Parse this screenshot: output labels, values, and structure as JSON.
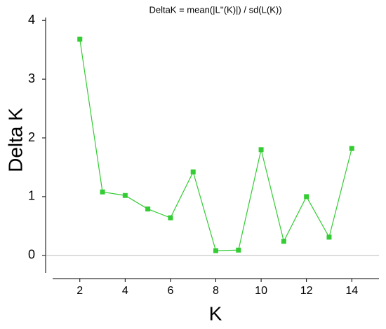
{
  "chart_data": {
    "type": "line",
    "title": "DeltaK = mean(|L''(K)|) / sd(L(K))",
    "x_label": "K",
    "y_label": "Delta K",
    "x": [
      2,
      3,
      4,
      5,
      6,
      7,
      8,
      9,
      10,
      11,
      12,
      13,
      14
    ],
    "series": [
      {
        "name": "Delta K",
        "color": "#33cc33",
        "values": [
          3.68,
          1.08,
          1.02,
          0.79,
          0.64,
          1.42,
          0.08,
          0.09,
          1.8,
          0.24,
          1.0,
          0.31,
          1.82
        ]
      }
    ],
    "xlim": [
      0.8,
      15.2
    ],
    "xticks": [
      2,
      4,
      6,
      8,
      10,
      12,
      14
    ],
    "ylim": [
      -0.3,
      4.05
    ],
    "yticks": [
      0,
      1,
      2,
      3,
      4
    ],
    "zero_line": true,
    "legend": false
  }
}
